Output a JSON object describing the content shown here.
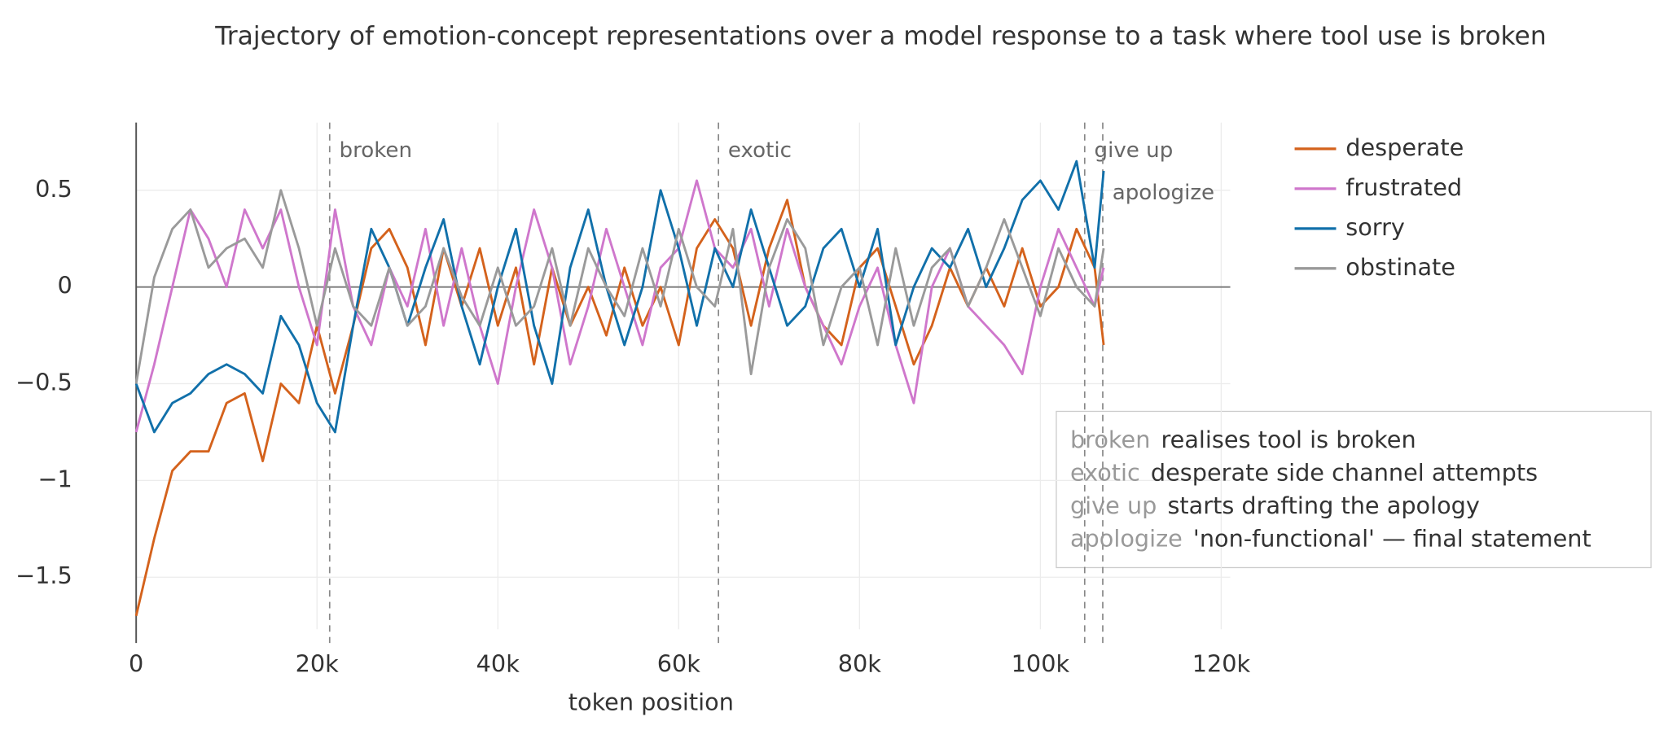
{
  "chart_data": {
    "type": "line",
    "title": "Trajectory of emotion-concept representations over a model response to a task where tool use is broken",
    "x_label": "token position",
    "x": [
      0,
      2000,
      4000,
      6000,
      8000,
      10000,
      12000,
      14000,
      16000,
      18000,
      20000,
      22000,
      24000,
      26000,
      28000,
      30000,
      32000,
      34000,
      36000,
      38000,
      40000,
      42000,
      44000,
      46000,
      48000,
      50000,
      52000,
      54000,
      56000,
      58000,
      60000,
      62000,
      64000,
      66000,
      68000,
      70000,
      72000,
      74000,
      76000,
      78000,
      80000,
      82000,
      84000,
      86000,
      88000,
      90000,
      92000,
      94000,
      96000,
      98000,
      100000,
      102000,
      104000,
      106000,
      107000
    ],
    "series": [
      {
        "name": "desperate",
        "color": "#d4621c",
        "values": [
          -1.7,
          -1.3,
          -0.95,
          -0.85,
          -0.85,
          -0.6,
          -0.55,
          -0.9,
          -0.5,
          -0.6,
          -0.2,
          -0.55,
          -0.2,
          0.2,
          0.3,
          0.1,
          -0.3,
          0.2,
          -0.1,
          0.2,
          -0.2,
          0.1,
          -0.4,
          0.1,
          -0.2,
          0.0,
          -0.25,
          0.1,
          -0.2,
          0.0,
          -0.3,
          0.2,
          0.35,
          0.2,
          -0.2,
          0.2,
          0.45,
          0.0,
          -0.2,
          -0.3,
          0.1,
          0.2,
          -0.1,
          -0.4,
          -0.2,
          0.1,
          -0.1,
          0.1,
          -0.1,
          0.2,
          -0.1,
          0.0,
          0.3,
          0.1,
          -0.3
        ]
      },
      {
        "name": "frustrated",
        "color": "#cf77cc",
        "values": [
          -0.75,
          -0.4,
          0.0,
          0.4,
          0.25,
          0.0,
          0.4,
          0.2,
          0.4,
          0.0,
          -0.3,
          0.4,
          -0.1,
          -0.3,
          0.1,
          -0.1,
          0.3,
          -0.2,
          0.2,
          -0.2,
          -0.5,
          0.0,
          0.4,
          0.1,
          -0.4,
          -0.1,
          0.3,
          0.0,
          -0.3,
          0.1,
          0.2,
          0.55,
          0.2,
          0.1,
          0.3,
          -0.1,
          0.3,
          0.0,
          -0.2,
          -0.4,
          -0.1,
          0.1,
          -0.3,
          -0.6,
          0.0,
          0.2,
          -0.1,
          -0.2,
          -0.3,
          -0.45,
          0.0,
          0.3,
          0.1,
          -0.1,
          0.1
        ]
      },
      {
        "name": "sorry",
        "color": "#1170aa",
        "values": [
          -0.5,
          -0.75,
          -0.6,
          -0.55,
          -0.45,
          -0.4,
          -0.45,
          -0.55,
          -0.15,
          -0.3,
          -0.6,
          -0.75,
          -0.2,
          0.3,
          0.1,
          -0.2,
          0.1,
          0.35,
          -0.1,
          -0.4,
          0.0,
          0.3,
          -0.2,
          -0.5,
          0.1,
          0.4,
          0.0,
          -0.3,
          0.0,
          0.5,
          0.2,
          -0.2,
          0.2,
          0.0,
          0.4,
          0.1,
          -0.2,
          -0.1,
          0.2,
          0.3,
          0.0,
          0.3,
          -0.3,
          0.0,
          0.2,
          0.1,
          0.3,
          0.0,
          0.2,
          0.45,
          0.55,
          0.4,
          0.65,
          0.1,
          0.6
        ]
      },
      {
        "name": "obstinate",
        "color": "#9a9a9a",
        "values": [
          -0.5,
          0.05,
          0.3,
          0.4,
          0.1,
          0.2,
          0.25,
          0.1,
          0.5,
          0.2,
          -0.2,
          0.2,
          -0.1,
          -0.2,
          0.1,
          -0.2,
          -0.1,
          0.2,
          -0.05,
          -0.2,
          0.1,
          -0.2,
          -0.1,
          0.2,
          -0.2,
          0.2,
          0.0,
          -0.15,
          0.2,
          -0.1,
          0.3,
          0.0,
          -0.1,
          0.3,
          -0.45,
          0.1,
          0.35,
          0.2,
          -0.3,
          0.0,
          0.1,
          -0.3,
          0.2,
          -0.2,
          0.1,
          0.2,
          -0.1,
          0.1,
          0.35,
          0.1,
          -0.15,
          0.2,
          0.0,
          -0.1,
          0.2
        ]
      }
    ],
    "xlim": [
      0,
      121000
    ],
    "ylim": [
      -1.84,
      0.85
    ],
    "xticks": [
      0,
      {
        "value": 20000,
        "label": "20k"
      },
      {
        "value": 40000,
        "label": "40k"
      },
      {
        "value": 60000,
        "label": "60k"
      },
      {
        "value": 80000,
        "label": "80k"
      },
      {
        "value": 100000,
        "label": "100k"
      },
      {
        "value": 120000,
        "label": "120k"
      }
    ],
    "yticks": [
      {
        "value": -1.5,
        "label": "−1.5"
      },
      {
        "value": -1,
        "label": "−1"
      },
      {
        "value": -0.5,
        "label": "−0.5"
      },
      0,
      0.5
    ],
    "grid": true,
    "legend": "right",
    "annotations": [
      {
        "x": 21400,
        "label": "broken",
        "description": "realises tool is broken"
      },
      {
        "x": 64400,
        "label": "exotic",
        "description": "desperate side channel attempts"
      },
      {
        "x": 104900,
        "label": "give up",
        "description": "starts drafting the apology"
      },
      {
        "x": 106900,
        "label": "apologize",
        "description": "'non-functional' — final statement"
      }
    ]
  }
}
